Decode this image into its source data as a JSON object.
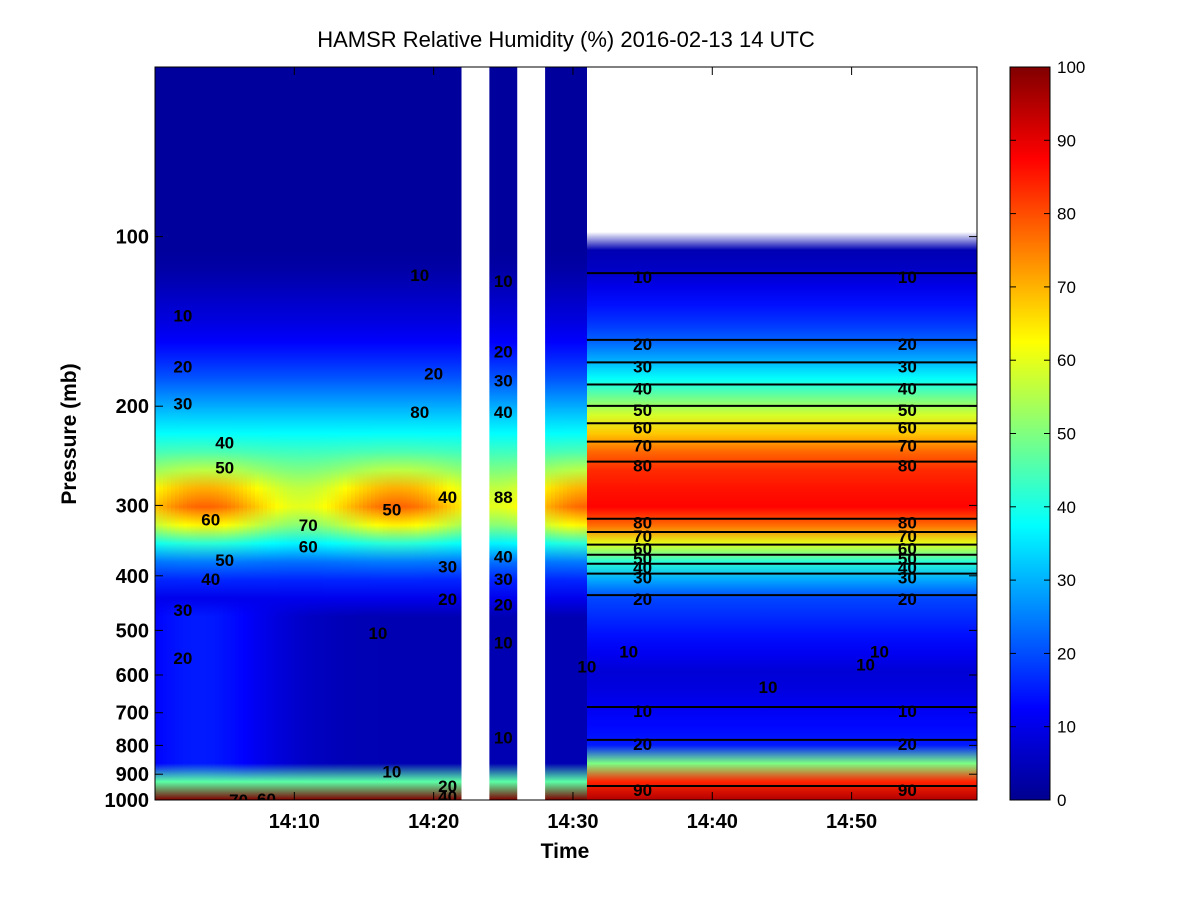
{
  "chart_data": {
    "type": "heatmap",
    "title": "HAMSR  Relative Humidity (%) 2016-02-13 14 UTC",
    "xlabel": "Time",
    "ylabel": "Pressure (mb)",
    "x_ticks": [
      "14:10",
      "14:20",
      "14:30",
      "14:40",
      "14:50"
    ],
    "y_ticks": [
      "100",
      "200",
      "300",
      "400",
      "500",
      "600",
      "700",
      "800",
      "900",
      "1000"
    ],
    "y_scale": "log",
    "y_reversed": true,
    "xlim": [
      "14:00",
      "14:59"
    ],
    "ylim": [
      50,
      1000
    ],
    "colorbar": {
      "label": "",
      "range": [
        0,
        100
      ],
      "ticks": [
        "0",
        "10",
        "20",
        "30",
        "40",
        "50",
        "60",
        "70",
        "80",
        "90",
        "100"
      ],
      "colormap": "jet"
    },
    "data_gaps_utc": [
      [
        "14:22",
        "14:24"
      ],
      [
        "14:26",
        "14:28"
      ]
    ],
    "no_data_above_mb_after_1431": 100,
    "profile_steady_after_1431": [
      {
        "pressure": 110,
        "rh": 5
      },
      {
        "pressure": 150,
        "rh": 20
      },
      {
        "pressure": 175,
        "rh": 35
      },
      {
        "pressure": 210,
        "rh": 60
      },
      {
        "pressure": 250,
        "rh": 82
      },
      {
        "pressure": 300,
        "rh": 88
      },
      {
        "pressure": 330,
        "rh": 75
      },
      {
        "pressure": 380,
        "rh": 40
      },
      {
        "pressure": 430,
        "rh": 20
      },
      {
        "pressure": 600,
        "rh": 8
      },
      {
        "pressure": 800,
        "rh": 15
      },
      {
        "pressure": 880,
        "rh": 60
      },
      {
        "pressure": 950,
        "rh": 95
      }
    ],
    "contour_labels": [
      {
        "text": "10",
        "x": "14:35",
        "p": 118
      },
      {
        "text": "10",
        "x": "14:54",
        "p": 118
      },
      {
        "text": "20",
        "x": "14:35",
        "p": 155
      },
      {
        "text": "20",
        "x": "14:54",
        "p": 155
      },
      {
        "text": "30",
        "x": "14:35",
        "p": 170
      },
      {
        "text": "30",
        "x": "14:54",
        "p": 170
      },
      {
        "text": "40",
        "x": "14:35",
        "p": 186
      },
      {
        "text": "40",
        "x": "14:54",
        "p": 186
      },
      {
        "text": "50",
        "x": "14:35",
        "p": 203
      },
      {
        "text": "50",
        "x": "14:54",
        "p": 203
      },
      {
        "text": "60",
        "x": "14:35",
        "p": 218
      },
      {
        "text": "60",
        "x": "14:54",
        "p": 218
      },
      {
        "text": "70",
        "x": "14:35",
        "p": 235
      },
      {
        "text": "70",
        "x": "14:54",
        "p": 235
      },
      {
        "text": "80",
        "x": "14:35",
        "p": 255
      },
      {
        "text": "80",
        "x": "14:54",
        "p": 255
      },
      {
        "text": "80",
        "x": "14:35",
        "p": 322
      },
      {
        "text": "80",
        "x": "14:54",
        "p": 322
      },
      {
        "text": "70",
        "x": "14:35",
        "p": 340
      },
      {
        "text": "70",
        "x": "14:54",
        "p": 340
      },
      {
        "text": "60",
        "x": "14:35",
        "p": 358
      },
      {
        "text": "60",
        "x": "14:54",
        "p": 358
      },
      {
        "text": "50",
        "x": "14:35",
        "p": 373
      },
      {
        "text": "50",
        "x": "14:54",
        "p": 373
      },
      {
        "text": "40",
        "x": "14:35",
        "p": 387
      },
      {
        "text": "40",
        "x": "14:54",
        "p": 387
      },
      {
        "text": "30",
        "x": "14:35",
        "p": 403
      },
      {
        "text": "30",
        "x": "14:54",
        "p": 403
      },
      {
        "text": "20",
        "x": "14:35",
        "p": 440
      },
      {
        "text": "20",
        "x": "14:54",
        "p": 440
      },
      {
        "text": "10",
        "x": "14:34",
        "p": 545
      },
      {
        "text": "10",
        "x": "14:52",
        "p": 545
      },
      {
        "text": "10",
        "x": "14:31",
        "p": 580
      },
      {
        "text": "10",
        "x": "14:51",
        "p": 575
      },
      {
        "text": "10",
        "x": "14:44",
        "p": 630
      },
      {
        "text": "10",
        "x": "14:35",
        "p": 695
      },
      {
        "text": "10",
        "x": "14:54",
        "p": 695
      },
      {
        "text": "20",
        "x": "14:35",
        "p": 795
      },
      {
        "text": "20",
        "x": "14:54",
        "p": 795
      },
      {
        "text": "90",
        "x": "14:35",
        "p": 960
      },
      {
        "text": "90",
        "x": "14:54",
        "p": 960
      },
      {
        "text": "10",
        "x": "14:02",
        "p": 138
      },
      {
        "text": "10",
        "x": "14:19",
        "p": 117
      },
      {
        "text": "10",
        "x": "14:25",
        "p": 120
      },
      {
        "text": "20",
        "x": "14:02",
        "p": 170
      },
      {
        "text": "20",
        "x": "14:20",
        "p": 175
      },
      {
        "text": "20",
        "x": "14:25",
        "p": 160
      },
      {
        "text": "30",
        "x": "14:02",
        "p": 198
      },
      {
        "text": "30",
        "x": "14:25",
        "p": 180
      },
      {
        "text": "80",
        "x": "14:19",
        "p": 205
      },
      {
        "text": "40",
        "x": "14:25",
        "p": 205
      },
      {
        "text": "40",
        "x": "14:05",
        "p": 232
      },
      {
        "text": "50",
        "x": "14:05",
        "p": 257
      },
      {
        "text": "40",
        "x": "14:21",
        "p": 290
      },
      {
        "text": "60",
        "x": "14:04",
        "p": 318
      },
      {
        "text": "70",
        "x": "14:11",
        "p": 325
      },
      {
        "text": "60",
        "x": "14:11",
        "p": 355
      },
      {
        "text": "50",
        "x": "14:17",
        "p": 305
      },
      {
        "text": "50",
        "x": "14:05",
        "p": 375
      },
      {
        "text": "40",
        "x": "14:04",
        "p": 405
      },
      {
        "text": "30",
        "x": "14:21",
        "p": 385
      },
      {
        "text": "20",
        "x": "14:21",
        "p": 440
      },
      {
        "text": "30",
        "x": "14:02",
        "p": 460
      },
      {
        "text": "20",
        "x": "14:02",
        "p": 560
      },
      {
        "text": "10",
        "x": "14:16",
        "p": 505
      },
      {
        "text": "40",
        "x": "14:25",
        "p": 370
      },
      {
        "text": "30",
        "x": "14:25",
        "p": 405
      },
      {
        "text": "20",
        "x": "14:25",
        "p": 450
      },
      {
        "text": "10",
        "x": "14:25",
        "p": 525
      },
      {
        "text": "10",
        "x": "14:25",
        "p": 775
      },
      {
        "text": "88",
        "x": "14:25",
        "p": 290
      },
      {
        "text": "10",
        "x": "14:17",
        "p": 890
      },
      {
        "text": "20",
        "x": "14:21",
        "p": 945
      },
      {
        "text": "40",
        "x": "14:21",
        "p": 985
      },
      {
        "text": "70",
        "x": "14:06",
        "p": 1000
      },
      {
        "text": "60",
        "x": "14:08",
        "p": 995
      }
    ]
  }
}
